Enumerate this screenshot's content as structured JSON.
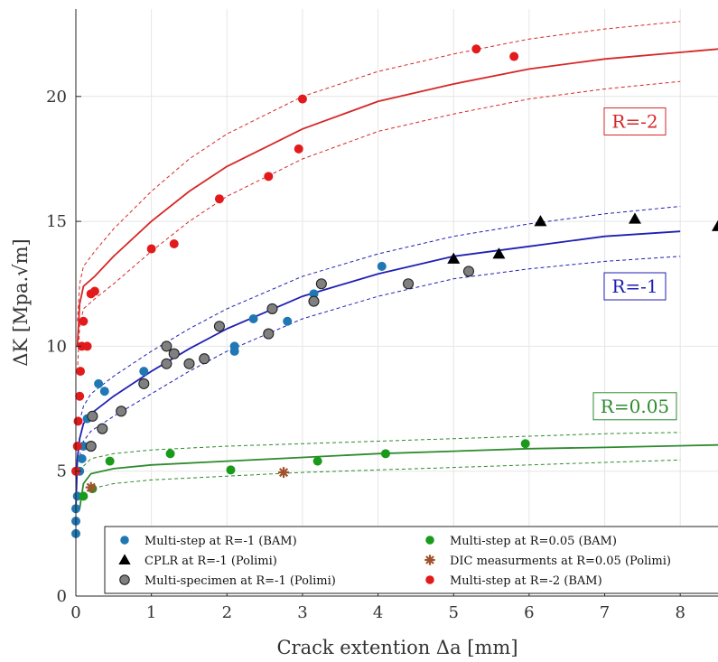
{
  "chart_data": {
    "type": "scatter",
    "xlabel": "Crack extention Δa [mm]",
    "ylabel": "ΔK  [Mpa.√m]",
    "xlim": [
      0,
      8.5
    ],
    "ylim": [
      0,
      23.5
    ],
    "x_ticks": [
      0,
      1,
      2,
      3,
      4,
      5,
      6,
      7,
      8
    ],
    "y_ticks": [
      0,
      5,
      10,
      15,
      20
    ],
    "grid": true,
    "legend_position": "bottom-center",
    "annotations": [
      {
        "text": "R=-2",
        "x": 7.4,
        "y": 19.0,
        "color": "#d62728"
      },
      {
        "text": "R=-1",
        "x": 7.4,
        "y": 12.4,
        "color": "#1f1fb4"
      },
      {
        "text": "R=0.05",
        "x": 7.4,
        "y": 7.6,
        "color": "#2e8b2e"
      }
    ],
    "series": [
      {
        "name": "Multi-step at R=-1 (BAM)",
        "marker": "circle",
        "color": "#1f77b4",
        "points": [
          [
            0,
            2.5
          ],
          [
            0,
            3.0
          ],
          [
            0,
            3.5
          ],
          [
            0.02,
            4.0
          ],
          [
            0.05,
            5.0
          ],
          [
            0.08,
            5.5
          ],
          [
            0.1,
            6.0
          ],
          [
            0.15,
            7.1
          ],
          [
            0.3,
            8.5
          ],
          [
            0.38,
            8.2
          ],
          [
            0.9,
            9.0
          ],
          [
            2.1,
            10.0
          ],
          [
            2.1,
            9.8
          ],
          [
            2.35,
            11.1
          ],
          [
            2.8,
            11.0
          ],
          [
            3.15,
            12.1
          ],
          [
            4.05,
            13.2
          ]
        ]
      },
      {
        "name": "CPLR at R=-1 (Polimi)",
        "marker": "triangle",
        "color": "#000000",
        "points": [
          [
            5.0,
            13.5
          ],
          [
            5.6,
            13.7
          ],
          [
            6.15,
            15.0
          ],
          [
            7.4,
            15.1
          ],
          [
            8.5,
            14.8
          ]
        ]
      },
      {
        "name": "Multi-specimen at R=-1 (Polimi)",
        "marker": "circle-gray",
        "color": "#808080",
        "points": [
          [
            0.2,
            6.0
          ],
          [
            0.22,
            7.2
          ],
          [
            0.35,
            6.7
          ],
          [
            0.6,
            7.4
          ],
          [
            0.9,
            8.5
          ],
          [
            1.2,
            9.3
          ],
          [
            1.2,
            10.0
          ],
          [
            1.3,
            9.7
          ],
          [
            1.5,
            9.3
          ],
          [
            1.7,
            9.5
          ],
          [
            1.9,
            10.8
          ],
          [
            2.55,
            10.5
          ],
          [
            2.6,
            11.5
          ],
          [
            3.15,
            11.8
          ],
          [
            3.25,
            12.5
          ],
          [
            4.4,
            12.5
          ],
          [
            5.2,
            13.0
          ]
        ]
      },
      {
        "name": "Multi-step at R=0.05 (BAM)",
        "marker": "circle",
        "color": "#1a9a1a",
        "points": [
          [
            0.1,
            4.0
          ],
          [
            0.22,
            4.3
          ],
          [
            0.45,
            5.4
          ],
          [
            1.25,
            5.7
          ],
          [
            2.05,
            5.05
          ],
          [
            3.2,
            5.4
          ],
          [
            4.1,
            5.7
          ],
          [
            5.95,
            6.1
          ]
        ]
      },
      {
        "name": "DIC measurments at R=0.05 (Polimi)",
        "marker": "asterisk",
        "color": "#a0522d",
        "points": [
          [
            0.2,
            4.35
          ],
          [
            2.75,
            4.95
          ]
        ]
      },
      {
        "name": "Multi-step at R=-2 (BAM)",
        "marker": "circle",
        "color": "#e31a1c",
        "points": [
          [
            0,
            5.0
          ],
          [
            0.02,
            6.0
          ],
          [
            0.03,
            7.0
          ],
          [
            0.05,
            8.0
          ],
          [
            0.06,
            9.0
          ],
          [
            0.08,
            10.0
          ],
          [
            0.1,
            11.0
          ],
          [
            0.15,
            10.0
          ],
          [
            0.2,
            12.1
          ],
          [
            0.25,
            12.2
          ],
          [
            1.0,
            13.9
          ],
          [
            1.3,
            14.1
          ],
          [
            1.9,
            15.9
          ],
          [
            2.55,
            16.8
          ],
          [
            2.95,
            17.9
          ],
          [
            3.0,
            19.9
          ],
          [
            5.3,
            21.9
          ],
          [
            5.8,
            21.6
          ]
        ]
      }
    ],
    "fit_curves": [
      {
        "group": "R=-2",
        "color": "#d62728",
        "dashed": false,
        "points": [
          [
            0.02,
            10.0
          ],
          [
            0.05,
            11.7
          ],
          [
            0.1,
            12.4
          ],
          [
            0.25,
            12.8
          ],
          [
            0.5,
            13.6
          ],
          [
            1.0,
            15.0
          ],
          [
            1.5,
            16.2
          ],
          [
            2.0,
            17.2
          ],
          [
            3.0,
            18.7
          ],
          [
            4.0,
            19.8
          ],
          [
            5.0,
            20.5
          ],
          [
            6.0,
            21.1
          ],
          [
            7.0,
            21.5
          ],
          [
            8.5,
            21.9
          ]
        ]
      },
      {
        "group": "R=-2",
        "color": "#d62728",
        "dashed": true,
        "points": [
          [
            0.02,
            11.0
          ],
          [
            0.05,
            12.5
          ],
          [
            0.1,
            13.2
          ],
          [
            0.25,
            13.8
          ],
          [
            0.5,
            14.7
          ],
          [
            1.0,
            16.2
          ],
          [
            1.5,
            17.5
          ],
          [
            2.0,
            18.5
          ],
          [
            3.0,
            20.0
          ],
          [
            4.0,
            21.0
          ],
          [
            5.0,
            21.7
          ],
          [
            6.0,
            22.3
          ],
          [
            7.0,
            22.7
          ],
          [
            8.0,
            23.0
          ]
        ]
      },
      {
        "group": "R=-2",
        "color": "#d62728",
        "dashed": true,
        "points": [
          [
            0.02,
            9.0
          ],
          [
            0.05,
            10.8
          ],
          [
            0.1,
            11.5
          ],
          [
            0.25,
            11.9
          ],
          [
            0.5,
            12.5
          ],
          [
            1.0,
            13.8
          ],
          [
            1.5,
            15.0
          ],
          [
            2.0,
            16.0
          ],
          [
            3.0,
            17.5
          ],
          [
            4.0,
            18.6
          ],
          [
            5.0,
            19.3
          ],
          [
            6.0,
            19.9
          ],
          [
            7.0,
            20.3
          ],
          [
            8.0,
            20.6
          ]
        ]
      },
      {
        "group": "R=-1",
        "color": "#1f1fb4",
        "dashed": false,
        "points": [
          [
            0.0,
            3.5
          ],
          [
            0.02,
            5.5
          ],
          [
            0.05,
            6.3
          ],
          [
            0.1,
            6.9
          ],
          [
            0.2,
            7.3
          ],
          [
            0.5,
            8.0
          ],
          [
            1.0,
            9.0
          ],
          [
            1.5,
            9.9
          ],
          [
            2.0,
            10.7
          ],
          [
            3.0,
            12.0
          ],
          [
            4.0,
            12.9
          ],
          [
            5.0,
            13.6
          ],
          [
            6.0,
            14.0
          ],
          [
            7.0,
            14.4
          ],
          [
            8.0,
            14.6
          ]
        ]
      },
      {
        "group": "R=-1",
        "color": "#1f1fb4",
        "dashed": true,
        "points": [
          [
            0.05,
            7.0
          ],
          [
            0.1,
            7.6
          ],
          [
            0.2,
            8.1
          ],
          [
            0.5,
            8.8
          ],
          [
            1.0,
            9.8
          ],
          [
            1.5,
            10.7
          ],
          [
            2.0,
            11.5
          ],
          [
            3.0,
            12.8
          ],
          [
            4.0,
            13.7
          ],
          [
            5.0,
            14.4
          ],
          [
            6.0,
            14.9
          ],
          [
            7.0,
            15.3
          ],
          [
            8.0,
            15.6
          ]
        ]
      },
      {
        "group": "R=-1",
        "color": "#1f1fb4",
        "dashed": true,
        "points": [
          [
            0.05,
            5.6
          ],
          [
            0.1,
            6.2
          ],
          [
            0.2,
            6.6
          ],
          [
            0.5,
            7.2
          ],
          [
            1.0,
            8.1
          ],
          [
            1.5,
            9.0
          ],
          [
            2.0,
            9.8
          ],
          [
            3.0,
            11.1
          ],
          [
            4.0,
            12.0
          ],
          [
            5.0,
            12.7
          ],
          [
            6.0,
            13.1
          ],
          [
            7.0,
            13.4
          ],
          [
            8.0,
            13.6
          ]
        ]
      },
      {
        "group": "R=0.05",
        "color": "#2e8b2e",
        "dashed": false,
        "points": [
          [
            0.05,
            3.5
          ],
          [
            0.1,
            4.5
          ],
          [
            0.2,
            4.9
          ],
          [
            0.5,
            5.1
          ],
          [
            1.0,
            5.25
          ],
          [
            2.0,
            5.4
          ],
          [
            3.0,
            5.55
          ],
          [
            4.0,
            5.7
          ],
          [
            5.0,
            5.8
          ],
          [
            6.0,
            5.9
          ],
          [
            7.0,
            5.95
          ],
          [
            8.5,
            6.05
          ]
        ]
      },
      {
        "group": "R=0.05",
        "color": "#2e8b2e",
        "dashed": true,
        "points": [
          [
            0.1,
            5.2
          ],
          [
            0.2,
            5.5
          ],
          [
            0.5,
            5.7
          ],
          [
            1.0,
            5.85
          ],
          [
            2.0,
            6.0
          ],
          [
            3.0,
            6.1
          ],
          [
            4.0,
            6.2
          ],
          [
            5.0,
            6.3
          ],
          [
            6.0,
            6.4
          ],
          [
            7.0,
            6.5
          ],
          [
            8.0,
            6.55
          ]
        ]
      },
      {
        "group": "R=0.05",
        "color": "#2e8b2e",
        "dashed": true,
        "points": [
          [
            0.1,
            4.0
          ],
          [
            0.2,
            4.3
          ],
          [
            0.5,
            4.5
          ],
          [
            1.0,
            4.65
          ],
          [
            2.0,
            4.8
          ],
          [
            3.0,
            4.95
          ],
          [
            4.0,
            5.05
          ],
          [
            5.0,
            5.15
          ],
          [
            6.0,
            5.25
          ],
          [
            7.0,
            5.35
          ],
          [
            8.0,
            5.45
          ]
        ]
      }
    ]
  }
}
